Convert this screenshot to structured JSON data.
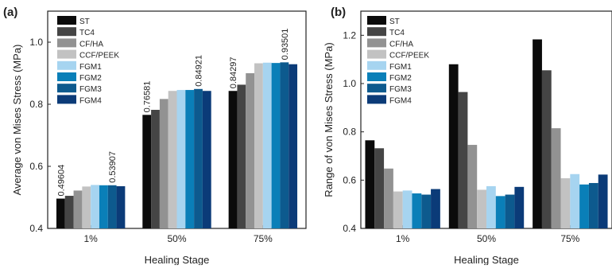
{
  "colors": {
    "ST": "#0b0b0b",
    "TC4": "#454545",
    "CF/HA": "#929292",
    "CCF/PEEK": "#c2c2c2",
    "FGM1": "#a6d4f0",
    "FGM2": "#0a7fb8",
    "FGM3": "#0d5a8e",
    "FGM4": "#0b3b78"
  },
  "chart_data": [
    {
      "type": "bar",
      "panel_label": "(a)",
      "xlabel": "Healing Stage",
      "ylabel": "Average von Mises Stress (MPa)",
      "ylim": [
        0.4,
        1.1
      ],
      "yticks": [
        "0.4",
        "0.6",
        "0.8",
        "1.0"
      ],
      "categories": [
        "1%",
        "50%",
        "75%"
      ],
      "legend_position": "top-left",
      "series": [
        {
          "name": "ST",
          "values": [
            0.49604,
            0.76581,
            0.84297
          ]
        },
        {
          "name": "TC4",
          "values": [
            0.505,
            0.782,
            0.863
          ]
        },
        {
          "name": "CF/HA",
          "values": [
            0.522,
            0.817,
            0.9
          ]
        },
        {
          "name": "CCF/PEEK",
          "values": [
            0.535,
            0.843,
            0.932
          ]
        },
        {
          "name": "FGM1",
          "values": [
            0.54,
            0.846,
            0.934
          ]
        },
        {
          "name": "FGM2",
          "values": [
            0.539,
            0.846,
            0.933
          ]
        },
        {
          "name": "FGM3",
          "values": [
            0.53907,
            0.84921,
            0.93501
          ]
        },
        {
          "name": "FGM4",
          "values": [
            0.536,
            0.843,
            0.929
          ]
        }
      ],
      "data_labels": [
        {
          "series": "ST",
          "category": "1%",
          "text": "0.49604"
        },
        {
          "series": "FGM3",
          "category": "1%",
          "text": "0.53907"
        },
        {
          "series": "ST",
          "category": "50%",
          "text": "0.76581"
        },
        {
          "series": "FGM3",
          "category": "50%",
          "text": "0.84921"
        },
        {
          "series": "ST",
          "category": "75%",
          "text": "0.84297"
        },
        {
          "series": "FGM3",
          "category": "75%",
          "text": "0.93501"
        }
      ]
    },
    {
      "type": "bar",
      "panel_label": "(b)",
      "xlabel": "Healing Stage",
      "ylabel": "Range of von Mises Stress (MPa)",
      "ylim": [
        0.4,
        1.3
      ],
      "yticks": [
        "0.4",
        "0.6",
        "0.8",
        "1.0",
        "1.2"
      ],
      "categories": [
        "1%",
        "50%",
        "75%"
      ],
      "legend_position": "top-left",
      "series": [
        {
          "name": "ST",
          "values": [
            0.765,
            1.08,
            1.183
          ]
        },
        {
          "name": "TC4",
          "values": [
            0.732,
            0.965,
            1.055
          ]
        },
        {
          "name": "CF/HA",
          "values": [
            0.648,
            0.746,
            0.815
          ]
        },
        {
          "name": "CCF/PEEK",
          "values": [
            0.553,
            0.56,
            0.608
          ]
        },
        {
          "name": "FGM1",
          "values": [
            0.557,
            0.575,
            0.625
          ]
        },
        {
          "name": "FGM2",
          "values": [
            0.545,
            0.534,
            0.582
          ]
        },
        {
          "name": "FGM3",
          "values": [
            0.54,
            0.54,
            0.588
          ]
        },
        {
          "name": "FGM4",
          "values": [
            0.563,
            0.572,
            0.623
          ]
        }
      ],
      "data_labels": []
    }
  ]
}
